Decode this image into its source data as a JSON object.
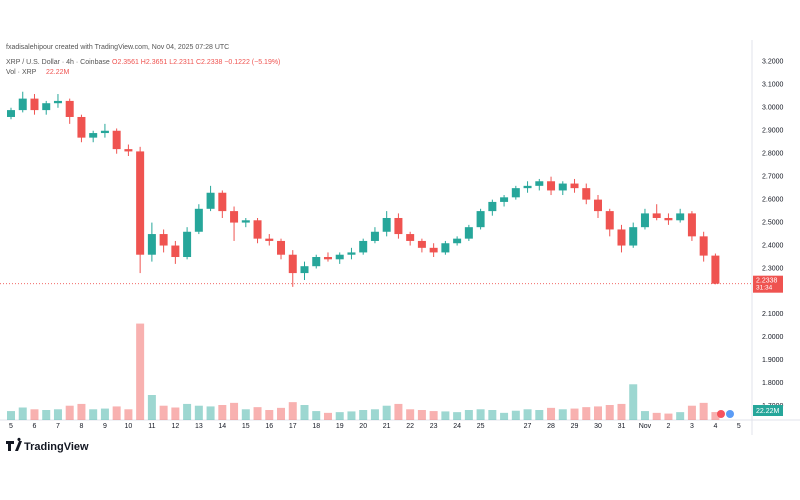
{
  "header": {
    "attribution": "fxadisalehipour created with TradingView.com, Nov 04, 2025 07:28 UTC"
  },
  "chart_data": {
    "type": "candlestick",
    "title": "XRP / U.S. Dollar · 4h · Coinbase",
    "ohlc_label": "O2.3561 H2.3651 L2.2311 C2.2338 −0.1222 (−5.19%)",
    "volume_title": "Vol · XRP",
    "volume_label": "22.22M",
    "countdown": "31:34",
    "up_color": "#26a69a",
    "down_color": "#ef5350",
    "grid": false,
    "ylim": [
      1.64,
      3.23
    ],
    "yticks": [
      {
        "value": 1.7,
        "label": "1.7000"
      },
      {
        "value": 1.8,
        "label": "1.8000"
      },
      {
        "value": 1.9,
        "label": "1.9000"
      },
      {
        "value": 2.0,
        "label": "2.0000"
      },
      {
        "value": 2.1,
        "label": "2.1000"
      },
      {
        "value": 2.3,
        "label": "2.3000"
      },
      {
        "value": 2.4,
        "label": "2.4000"
      },
      {
        "value": 2.5,
        "label": "2.5000"
      },
      {
        "value": 2.6,
        "label": "2.6000"
      },
      {
        "value": 2.7,
        "label": "2.7000"
      },
      {
        "value": 2.8,
        "label": "2.8000"
      },
      {
        "value": 2.9,
        "label": "2.9000"
      },
      {
        "value": 3.0,
        "label": "3.0000"
      },
      {
        "value": 3.1,
        "label": "3.1000"
      },
      {
        "value": 3.2,
        "label": "3.2000"
      }
    ],
    "volume_lim": [
      0,
      280
    ],
    "categories": [
      "5",
      null,
      "6",
      null,
      "7",
      null,
      "8",
      null,
      "9",
      null,
      "10",
      null,
      "11",
      null,
      "12",
      null,
      "13",
      null,
      "14",
      null,
      "15",
      null,
      "16",
      null,
      "17",
      null,
      "18",
      null,
      "19",
      null,
      "20",
      null,
      "21",
      null,
      "22",
      null,
      "23",
      null,
      "24",
      null,
      "25",
      null,
      null,
      null,
      "27",
      null,
      "28",
      null,
      "29",
      null,
      "30",
      null,
      "31",
      null,
      "Nov",
      null,
      "2",
      null,
      "3",
      null,
      "4",
      null,
      "5"
    ],
    "open": [
      2.96,
      2.99,
      3.04,
      2.99,
      3.02,
      3.03,
      2.96,
      2.87,
      2.89,
      2.9,
      2.82,
      2.81,
      2.36,
      2.45,
      2.4,
      2.35,
      2.46,
      2.56,
      2.63,
      2.55,
      2.5,
      2.51,
      2.43,
      2.42,
      2.36,
      2.28,
      2.31,
      2.35,
      2.34,
      2.36,
      2.37,
      2.42,
      2.46,
      2.52,
      2.45,
      2.42,
      2.39,
      2.37,
      2.41,
      2.43,
      2.48,
      2.55,
      2.59,
      2.61,
      2.65,
      2.66,
      2.68,
      2.64,
      2.67,
      2.65,
      2.6,
      2.55,
      2.47,
      2.4,
      2.48,
      2.54,
      2.52,
      2.51,
      2.54,
      2.44,
      2.3561,
      null,
      null
    ],
    "high": [
      3.0,
      3.07,
      3.06,
      3.03,
      3.06,
      3.04,
      2.97,
      2.9,
      2.93,
      2.91,
      2.84,
      2.83,
      2.5,
      2.47,
      2.42,
      2.48,
      2.58,
      2.66,
      2.64,
      2.57,
      2.52,
      2.52,
      2.45,
      2.43,
      2.38,
      2.33,
      2.36,
      2.37,
      2.37,
      2.39,
      2.43,
      2.48,
      2.55,
      2.54,
      2.46,
      2.43,
      2.41,
      2.42,
      2.44,
      2.49,
      2.56,
      2.6,
      2.62,
      2.66,
      2.68,
      2.69,
      2.7,
      2.68,
      2.69,
      2.67,
      2.62,
      2.56,
      2.49,
      2.5,
      2.56,
      2.58,
      2.54,
      2.56,
      2.55,
      2.46,
      2.3651,
      null,
      null
    ],
    "low": [
      2.95,
      2.98,
      2.97,
      2.97,
      3.0,
      2.93,
      2.85,
      2.85,
      2.87,
      2.8,
      2.79,
      2.28,
      2.33,
      2.37,
      2.32,
      2.34,
      2.45,
      2.55,
      2.52,
      2.42,
      2.48,
      2.41,
      2.4,
      2.34,
      2.22,
      2.25,
      2.3,
      2.33,
      2.32,
      2.34,
      2.36,
      2.41,
      2.44,
      2.43,
      2.4,
      2.37,
      2.35,
      2.36,
      2.4,
      2.42,
      2.47,
      2.53,
      2.57,
      2.6,
      2.63,
      2.64,
      2.62,
      2.62,
      2.63,
      2.58,
      2.52,
      2.44,
      2.37,
      2.39,
      2.47,
      2.51,
      2.49,
      2.5,
      2.42,
      2.33,
      2.2311,
      null,
      null
    ],
    "close": [
      2.99,
      3.04,
      2.99,
      3.02,
      3.03,
      2.96,
      2.87,
      2.89,
      2.9,
      2.82,
      2.81,
      2.36,
      2.45,
      2.4,
      2.35,
      2.46,
      2.56,
      2.63,
      2.55,
      2.5,
      2.51,
      2.43,
      2.42,
      2.36,
      2.28,
      2.31,
      2.35,
      2.34,
      2.36,
      2.37,
      2.42,
      2.46,
      2.52,
      2.45,
      2.42,
      2.39,
      2.37,
      2.41,
      2.43,
      2.48,
      2.55,
      2.59,
      2.61,
      2.65,
      2.66,
      2.68,
      2.64,
      2.67,
      2.65,
      2.6,
      2.55,
      2.47,
      2.4,
      2.48,
      2.54,
      2.52,
      2.51,
      2.54,
      2.44,
      2.3561,
      2.2338,
      null,
      null
    ],
    "volume": [
      25,
      35,
      30,
      28,
      30,
      40,
      45,
      30,
      32,
      38,
      30,
      270,
      70,
      40,
      35,
      45,
      40,
      38,
      42,
      48,
      30,
      36,
      28,
      34,
      50,
      42,
      25,
      20,
      22,
      24,
      28,
      30,
      40,
      45,
      30,
      28,
      25,
      24,
      22,
      28,
      30,
      28,
      20,
      26,
      30,
      28,
      34,
      30,
      32,
      36,
      38,
      42,
      45,
      100,
      25,
      20,
      18,
      22,
      40,
      48,
      22.22,
      null,
      null
    ]
  },
  "footer": {
    "logo": "TradingView"
  }
}
